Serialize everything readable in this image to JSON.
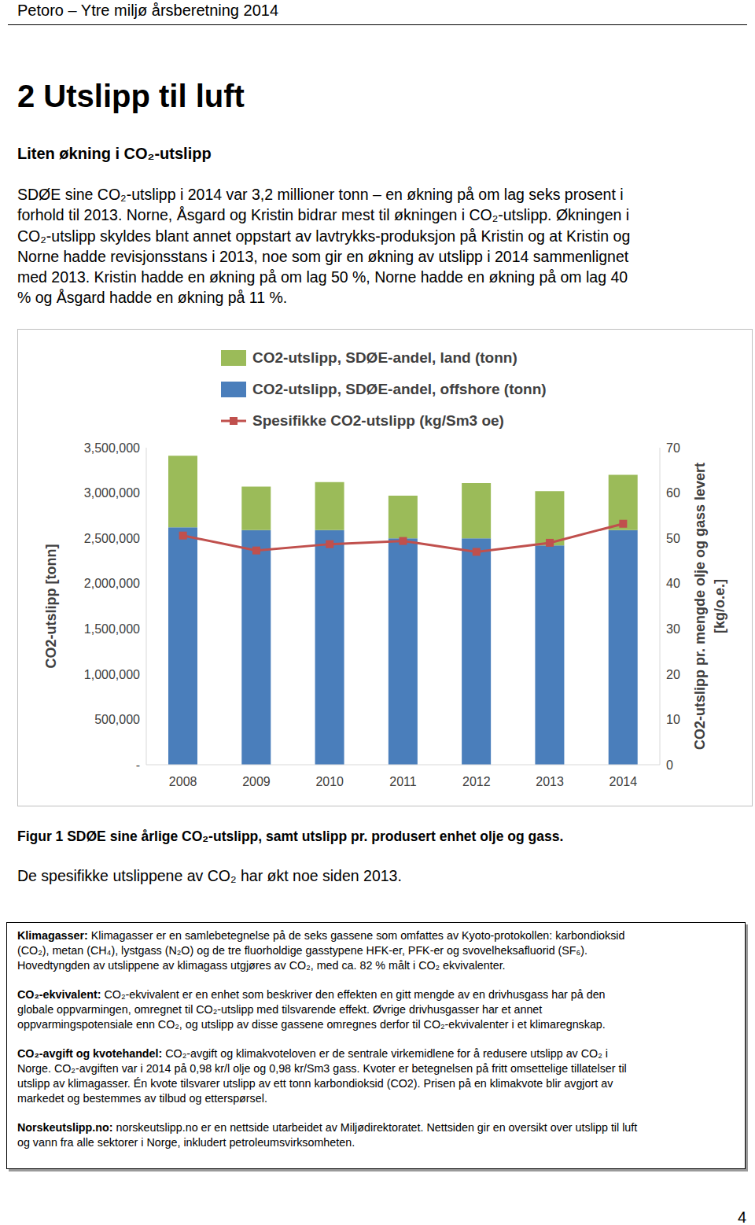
{
  "header": "Petoro – Ytre miljø årsberetning 2014",
  "heading": "2 Utslipp til luft",
  "subheading": "Liten økning i CO₂-utslipp",
  "paragraph": [
    "SDØE sine CO₂-utslipp i 2014 var 3,2 millioner tonn – en økning på om lag seks prosent i",
    "forhold til 2013. Norne, Åsgard og Kristin bidrar mest til økningen i CO₂-utslipp. Økningen i",
    "CO₂-utslipp skyldes blant annet oppstart av lavtrykks-produksjon på Kristin og at Kristin og",
    "Norne hadde revisjonsstans i 2013, noe som gir en økning av utslipp i 2014 sammenlignet",
    "med 2013. Kristin hadde en økning på om lag 50 %, Norne hadde en økning på om lag  40",
    "% og  Åsgard hadde en økning på 11 %."
  ],
  "chart_data": {
    "type": "bar",
    "stacked": true,
    "legend": "top",
    "grid": false,
    "categories": [
      "2008",
      "2009",
      "2010",
      "2011",
      "2012",
      "2013",
      "2014"
    ],
    "series": [
      {
        "name": "CO2-utslipp, SDØE-andel, land (tonn)",
        "type": "bar",
        "color": "#9bbb59",
        "values": [
          790000,
          480000,
          530000,
          470000,
          610000,
          600000,
          610000
        ]
      },
      {
        "name": "CO2-utslipp, SDØE-andel, offshore (tonn)",
        "type": "bar",
        "color": "#4a7ebb",
        "values": [
          2620000,
          2590000,
          2590000,
          2500000,
          2500000,
          2420000,
          2590000
        ]
      },
      {
        "name": "Spesifikke CO2-utslipp (kg/Sm3 oe)",
        "type": "line",
        "axis": "y2",
        "marker": "square",
        "color": "#c0504d",
        "values": [
          50.6,
          47.3,
          48.7,
          49.4,
          47.0,
          49.0,
          53.2
        ]
      }
    ],
    "ylabel": "CO2-utslipp [tonn]",
    "y2label": [
      "CO2-utslipp pr. mengde olje og gass levert",
      "[kg/o.e.]"
    ],
    "ylim": [
      0,
      3500000
    ],
    "yticks": [
      {
        "value": 0,
        "label": "-"
      },
      {
        "value": 500000,
        "label": "500,000"
      },
      {
        "value": 1000000,
        "label": "1,000,000"
      },
      {
        "value": 1500000,
        "label": "1,500,000"
      },
      {
        "value": 2000000,
        "label": "2,000,000"
      },
      {
        "value": 2500000,
        "label": "2,500,000"
      },
      {
        "value": 3000000,
        "label": "3,000,000"
      },
      {
        "value": 3500000,
        "label": "3,500,000"
      }
    ],
    "y2lim": [
      0,
      70
    ],
    "y2ticks": [
      0,
      10,
      20,
      30,
      40,
      50,
      60,
      70
    ]
  },
  "caption": "Figur 1 SDØE sine årlige CO₂-utslipp, samt utslipp pr. produsert enhet olje og gass.",
  "note": "De spesifikke utslippene av CO₂ har økt noe siden 2013.",
  "info_box": [
    {
      "term": "Klimagasser:",
      "lines": [
        "Klimagasser er en samlebetegnelse på de seks gassene som omfattes av Kyoto-protokollen: karbondioksid",
        "(CO₂), metan (CH₄), lystgass (N₂O) og de tre fluorholdige gasstypene HFK-er, PFK-er og svovelheksafluorid (SF₆).",
        "Hovedtyngden av utslippene av klimagass utgjøres av CO₂, med ca. 82 % målt i CO₂ ekvivalenter."
      ]
    },
    {
      "term": "CO₂-ekvivalent:",
      "lines": [
        "CO₂-ekvivalent er en enhet som beskriver den effekten en gitt mengde av en drivhusgass har på den",
        "globale oppvarmingen, omregnet til CO₂-utslipp med tilsvarende effekt. Øvrige drivhusgasser har et annet",
        "oppvarmingspotensiale enn CO₂, og utslipp av disse gassene omregnes derfor til CO₂-ekvivalenter i et klimaregnskap."
      ]
    },
    {
      "term": "CO₂-avgift og kvotehandel:",
      "lines": [
        "CO₂-avgift og klimakvoteloven er de sentrale virkemidlene for å redusere utslipp av CO₂ i",
        "Norge. CO₂-avgiften var i 2014 på 0,98 kr/l olje og 0,98 kr/Sm3 gass. Kvoter er betegnelsen på fritt omsettelige tillatelser til",
        "utslipp av klimagasser. Én kvote tilsvarer utslipp av ett tonn karbondioksid (CO2). Prisen på en klimakvote blir avgjort av",
        "markedet og bestemmes av tilbud og etterspørsel."
      ]
    },
    {
      "term": "Norskeutslipp.no:",
      "lines": [
        "norskeutslipp.no er en nettside utarbeidet av Miljødirektoratet. Nettsiden gir en oversikt over utslipp til luft",
        "og vann fra alle sektorer i Norge, inkludert petroleumsvirksomheten."
      ]
    }
  ],
  "page_number": "4"
}
